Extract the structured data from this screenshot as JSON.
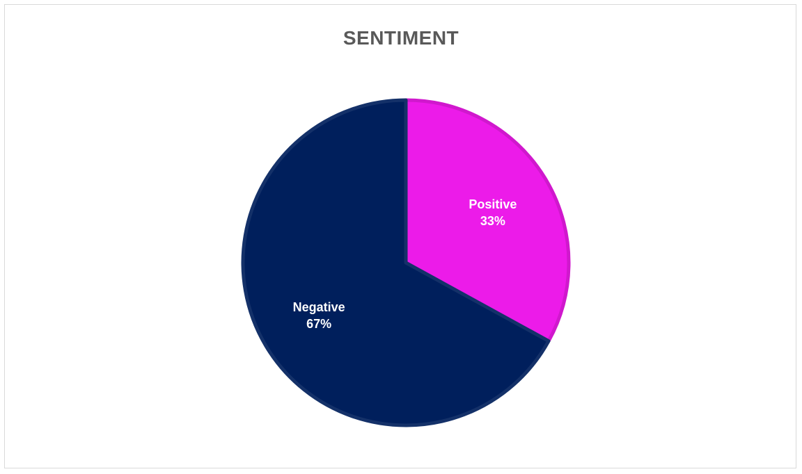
{
  "chart_data": {
    "type": "pie",
    "title": "SENTIMENT",
    "categories": [
      "Positive",
      "Negative"
    ],
    "values": [
      33,
      67
    ],
    "value_labels": [
      "33%",
      "67%"
    ],
    "colors": [
      "#ec1be9",
      "#001f5c"
    ],
    "legend": "none"
  }
}
